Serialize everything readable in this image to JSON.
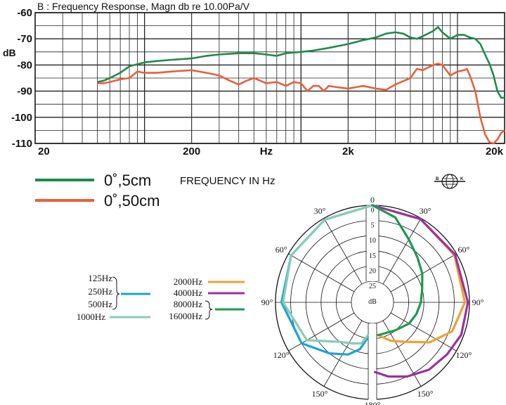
{
  "chart_data": [
    {
      "type": "line",
      "title": "B : Frequency Response, Magn db re 10.00Pa/V",
      "xlabel": "FREQUENCY IN Hz",
      "ylabel": "dB",
      "xscale": "log",
      "xlim": [
        20,
        20000
      ],
      "ylim": [
        -110,
        -60
      ],
      "x_tick_labels": [
        "20",
        "200",
        "Hz",
        "2k",
        "20k"
      ],
      "x_tick_values": [
        20,
        200,
        600,
        2000,
        20000
      ],
      "y_ticks": [
        -60,
        -70,
        -80,
        -90,
        -100,
        -110
      ],
      "grid": true,
      "legend": "below-left",
      "series": [
        {
          "name": "0˚,5cm",
          "color": "#1f8a4c",
          "points": [
            [
              50,
              -86.5
            ],
            [
              55,
              -86
            ],
            [
              60,
              -85
            ],
            [
              70,
              -83
            ],
            [
              80,
              -80.5
            ],
            [
              100,
              -79
            ],
            [
              120,
              -78.5
            ],
            [
              150,
              -78
            ],
            [
              200,
              -77.5
            ],
            [
              250,
              -76.5
            ],
            [
              300,
              -76
            ],
            [
              400,
              -75.5
            ],
            [
              500,
              -75.5
            ],
            [
              600,
              -76
            ],
            [
              700,
              -76.5
            ],
            [
              800,
              -75.5
            ],
            [
              1000,
              -75
            ],
            [
              1200,
              -74.5
            ],
            [
              1500,
              -73.5
            ],
            [
              2000,
              -72
            ],
            [
              2500,
              -70.5
            ],
            [
              3000,
              -69.5
            ],
            [
              3500,
              -68
            ],
            [
              4000,
              -67.5
            ],
            [
              4500,
              -68
            ],
            [
              5000,
              -69.5
            ],
            [
              5500,
              -70
            ],
            [
              6000,
              -69
            ],
            [
              7000,
              -67
            ],
            [
              7500,
              -65.5
            ],
            [
              8000,
              -67.5
            ],
            [
              9000,
              -70
            ],
            [
              10000,
              -68.5
            ],
            [
              11000,
              -68.5
            ],
            [
              12000,
              -69.5
            ],
            [
              13000,
              -70
            ],
            [
              14000,
              -72
            ],
            [
              15000,
              -76
            ],
            [
              16000,
              -79.5
            ],
            [
              17000,
              -84
            ],
            [
              18000,
              -90
            ],
            [
              19000,
              -92.5
            ],
            [
              20000,
              -92.5
            ]
          ]
        },
        {
          "name": "0˚,50cm",
          "color": "#e8603c",
          "points": [
            [
              50,
              -87
            ],
            [
              55,
              -87
            ],
            [
              60,
              -86.5
            ],
            [
              70,
              -85.5
            ],
            [
              80,
              -85
            ],
            [
              90,
              -82.5
            ],
            [
              100,
              -83
            ],
            [
              120,
              -83
            ],
            [
              150,
              -82.5
            ],
            [
              200,
              -82
            ],
            [
              250,
              -83
            ],
            [
              300,
              -84
            ],
            [
              350,
              -86
            ],
            [
              400,
              -87.5
            ],
            [
              450,
              -86
            ],
            [
              500,
              -85
            ],
            [
              600,
              -87
            ],
            [
              700,
              -86.5
            ],
            [
              800,
              -88
            ],
            [
              900,
              -86.5
            ],
            [
              1000,
              -87
            ],
            [
              1100,
              -90
            ],
            [
              1200,
              -88
            ],
            [
              1300,
              -88
            ],
            [
              1400,
              -90
            ],
            [
              1500,
              -88
            ],
            [
              1700,
              -88.5
            ],
            [
              2000,
              -89
            ],
            [
              2500,
              -88
            ],
            [
              3000,
              -89
            ],
            [
              3500,
              -89.5
            ],
            [
              4000,
              -87.5
            ],
            [
              5000,
              -85
            ],
            [
              5500,
              -81.5
            ],
            [
              6000,
              -82
            ],
            [
              7000,
              -80
            ],
            [
              7500,
              -79.5
            ],
            [
              8000,
              -80
            ],
            [
              9000,
              -84
            ],
            [
              10000,
              -82.5
            ],
            [
              11000,
              -82
            ],
            [
              11500,
              -81.5
            ],
            [
              12000,
              -84
            ],
            [
              13000,
              -90
            ],
            [
              14000,
              -100
            ],
            [
              15000,
              -106.5
            ],
            [
              16000,
              -109.5
            ],
            [
              17000,
              -110
            ],
            [
              18000,
              -108.5
            ],
            [
              19000,
              -106
            ],
            [
              20000,
              -105
            ]
          ]
        }
      ]
    },
    {
      "type": "polar",
      "angle_labels": [
        "0",
        "30°",
        "60°",
        "90°",
        "120°",
        "150°",
        "180°",
        "30°",
        "60°",
        "90°",
        "120°",
        "150°"
      ],
      "radial_labels": [
        "0",
        "5",
        "10",
        "15",
        "20",
        "25"
      ],
      "center_label": "dB",
      "legend": "left",
      "series": [
        {
          "name": "125Hz",
          "color": "#1aa2d8",
          "bracket_group": 1
        },
        {
          "name": "250Hz",
          "color": "#1aa2d8",
          "bracket_group": 1
        },
        {
          "name": "500Hz",
          "color": "#1aa2d8",
          "bracket_group": 1
        },
        {
          "name": "1000Hz",
          "color": "#88ccb6"
        },
        {
          "name": "2000Hz",
          "color": "#f0a030"
        },
        {
          "name": "4000Hz",
          "color": "#9c2fa4"
        },
        {
          "name": "8000Hz",
          "color": "#1c9a50",
          "bracket_group": 2
        },
        {
          "name": "16000Hz",
          "color": "#1c9a50",
          "bracket_group": 2
        }
      ],
      "curves": [
        {
          "color": "#1aa2d8",
          "side": "left",
          "points": [
            [
              0,
              0
            ],
            [
              30,
              0.5
            ],
            [
              60,
              1
            ],
            [
              90,
              2
            ],
            [
              120,
              5
            ],
            [
              140,
              10
            ],
            [
              155,
              13
            ],
            [
              165,
              16
            ],
            [
              172,
              20
            ]
          ]
        },
        {
          "color": "#88ccb6",
          "side": "left",
          "points": [
            [
              0,
              0
            ],
            [
              30,
              0.5
            ],
            [
              60,
              1
            ],
            [
              90,
              2.5
            ],
            [
              120,
              7
            ],
            [
              140,
              15
            ],
            [
              155,
              17
            ],
            [
              165,
              18
            ],
            [
              172,
              21
            ]
          ]
        },
        {
          "color": "#f0a030",
          "side": "right",
          "points": [
            [
              0,
              0
            ],
            [
              30,
              0.3
            ],
            [
              60,
              0.8
            ],
            [
              90,
              1.5
            ],
            [
              110,
              4
            ],
            [
              125,
              9
            ],
            [
              140,
              15
            ],
            [
              155,
              18
            ],
            [
              170,
              21
            ]
          ]
        },
        {
          "color": "#9c2fa4",
          "side": "right",
          "points": [
            [
              0,
              0
            ],
            [
              30,
              0.3
            ],
            [
              60,
              0.5
            ],
            [
              90,
              0.5
            ],
            [
              110,
              0.8
            ],
            [
              125,
              2
            ],
            [
              140,
              3
            ],
            [
              155,
              5
            ],
            [
              168,
              7
            ],
            [
              178,
              9
            ]
          ]
        },
        {
          "color": "#1c9a50",
          "side": "right",
          "points": [
            [
              0,
              0
            ],
            [
              15,
              3
            ],
            [
              30,
              8
            ],
            [
              45,
              11
            ],
            [
              60,
              13
            ],
            [
              75,
              15
            ],
            [
              90,
              16
            ],
            [
              105,
              17
            ],
            [
              120,
              18
            ],
            [
              140,
              20
            ],
            [
              160,
              21
            ],
            [
              170,
              21
            ]
          ]
        }
      ],
      "logo": "B&K"
    }
  ]
}
